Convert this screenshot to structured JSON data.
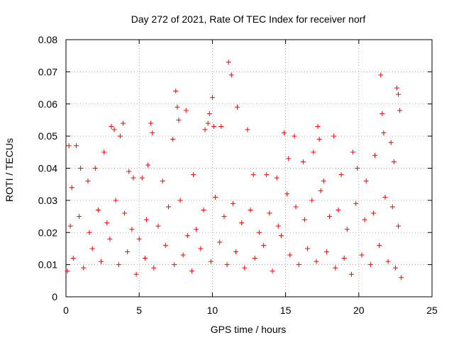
{
  "chart_data": {
    "type": "scatter",
    "title": "Day 272 of 2021, Rate Of TEC Index for receiver norf",
    "xlabel": "GPS time / hours",
    "ylabel": "ROTI / TECUs",
    "xlim": [
      0,
      25
    ],
    "ylim": [
      0,
      0.08
    ],
    "x_ticks": [
      0,
      5,
      10,
      15,
      20,
      25
    ],
    "x_tick_labels": [
      "0",
      "5",
      "10",
      "15",
      "20",
      "25"
    ],
    "y_ticks": [
      0,
      0.01,
      0.02,
      0.03,
      0.04,
      0.05,
      0.06,
      0.07,
      0.08
    ],
    "y_tick_labels": [
      "0",
      "0.01",
      "0.02",
      "0.03",
      "0.04",
      "0.05",
      "0.06",
      "0.07",
      "0.08"
    ],
    "grid": true,
    "marker": "+",
    "series": [
      {
        "color": "#ff0000",
        "points": [
          [
            0.2,
            0.047
          ],
          [
            0.4,
            0.034
          ],
          [
            0.7,
            0.047
          ],
          [
            1.0,
            0.04
          ],
          [
            1.5,
            0.036
          ],
          [
            2.0,
            0.04
          ],
          [
            2.6,
            0.045
          ],
          [
            3.1,
            0.053
          ],
          [
            3.3,
            0.052
          ],
          [
            3.7,
            0.05
          ],
          [
            3.9,
            0.054
          ],
          [
            4.3,
            0.039
          ],
          [
            4.6,
            0.037
          ],
          [
            5.2,
            0.037
          ],
          [
            5.6,
            0.041
          ],
          [
            5.8,
            0.054
          ],
          [
            5.9,
            0.051
          ],
          [
            6.6,
            0.036
          ],
          [
            7.3,
            0.049
          ],
          [
            7.5,
            0.064
          ],
          [
            7.6,
            0.059
          ],
          [
            7.7,
            0.055
          ],
          [
            8.2,
            0.058
          ],
          [
            8.7,
            0.038
          ],
          [
            9.5,
            0.052
          ],
          [
            9.7,
            0.054
          ],
          [
            9.8,
            0.057
          ],
          [
            10.0,
            0.062
          ],
          [
            10.1,
            0.053
          ],
          [
            10.6,
            0.053
          ],
          [
            11.1,
            0.073
          ],
          [
            11.3,
            0.069
          ],
          [
            11.7,
            0.059
          ],
          [
            12.4,
            0.052
          ],
          [
            12.8,
            0.038
          ],
          [
            13.7,
            0.038
          ],
          [
            14.4,
            0.037
          ],
          [
            14.9,
            0.051
          ],
          [
            15.2,
            0.043
          ],
          [
            15.6,
            0.05
          ],
          [
            16.2,
            0.042
          ],
          [
            16.9,
            0.045
          ],
          [
            17.2,
            0.053
          ],
          [
            17.3,
            0.049
          ],
          [
            17.6,
            0.036
          ],
          [
            18.3,
            0.05
          ],
          [
            18.8,
            0.038
          ],
          [
            19.6,
            0.045
          ],
          [
            19.9,
            0.04
          ],
          [
            20.5,
            0.036
          ],
          [
            21.1,
            0.044
          ],
          [
            21.5,
            0.069
          ],
          [
            21.6,
            0.057
          ],
          [
            21.7,
            0.051
          ],
          [
            22.2,
            0.048
          ],
          [
            22.4,
            0.042
          ],
          [
            22.6,
            0.065
          ],
          [
            22.7,
            0.063
          ],
          [
            22.8,
            0.058
          ],
          [
            0.1,
            0.008
          ],
          [
            0.5,
            0.012
          ],
          [
            1.2,
            0.009
          ],
          [
            1.8,
            0.015
          ],
          [
            2.4,
            0.011
          ],
          [
            3.0,
            0.018
          ],
          [
            3.6,
            0.01
          ],
          [
            4.2,
            0.014
          ],
          [
            4.8,
            0.007
          ],
          [
            5.4,
            0.012
          ],
          [
            6.0,
            0.009
          ],
          [
            6.8,
            0.016
          ],
          [
            7.4,
            0.01
          ],
          [
            8.0,
            0.013
          ],
          [
            8.6,
            0.008
          ],
          [
            9.2,
            0.015
          ],
          [
            9.9,
            0.011
          ],
          [
            10.5,
            0.017
          ],
          [
            11.0,
            0.01
          ],
          [
            11.6,
            0.014
          ],
          [
            12.2,
            0.009
          ],
          [
            12.9,
            0.012
          ],
          [
            13.5,
            0.016
          ],
          [
            14.1,
            0.008
          ],
          [
            14.7,
            0.019
          ],
          [
            15.3,
            0.013
          ],
          [
            15.9,
            0.01
          ],
          [
            16.5,
            0.015
          ],
          [
            17.1,
            0.011
          ],
          [
            17.8,
            0.014
          ],
          [
            18.4,
            0.009
          ],
          [
            19.0,
            0.012
          ],
          [
            19.5,
            0.007
          ],
          [
            20.2,
            0.013
          ],
          [
            20.8,
            0.01
          ],
          [
            21.4,
            0.016
          ],
          [
            22.0,
            0.011
          ],
          [
            22.5,
            0.009
          ],
          [
            22.9,
            0.006
          ],
          [
            0.3,
            0.022
          ],
          [
            0.9,
            0.025
          ],
          [
            1.6,
            0.02
          ],
          [
            2.2,
            0.027
          ],
          [
            2.8,
            0.023
          ],
          [
            3.4,
            0.03
          ],
          [
            4.0,
            0.026
          ],
          [
            4.5,
            0.021
          ],
          [
            5.0,
            0.018
          ],
          [
            5.5,
            0.024
          ],
          [
            6.3,
            0.022
          ],
          [
            7.0,
            0.028
          ],
          [
            7.8,
            0.03
          ],
          [
            8.3,
            0.019
          ],
          [
            8.9,
            0.021
          ],
          [
            9.4,
            0.027
          ],
          [
            10.2,
            0.031
          ],
          [
            10.8,
            0.025
          ],
          [
            11.4,
            0.029
          ],
          [
            12.0,
            0.023
          ],
          [
            12.6,
            0.027
          ],
          [
            13.2,
            0.02
          ],
          [
            13.9,
            0.026
          ],
          [
            14.5,
            0.022
          ],
          [
            15.1,
            0.032
          ],
          [
            15.7,
            0.028
          ],
          [
            16.3,
            0.024
          ],
          [
            16.8,
            0.03
          ],
          [
            17.4,
            0.033
          ],
          [
            18.0,
            0.025
          ],
          [
            18.6,
            0.027
          ],
          [
            19.2,
            0.021
          ],
          [
            19.8,
            0.029
          ],
          [
            20.4,
            0.024
          ],
          [
            21.0,
            0.026
          ],
          [
            21.8,
            0.031
          ],
          [
            22.3,
            0.028
          ],
          [
            22.7,
            0.022
          ]
        ]
      }
    ]
  }
}
